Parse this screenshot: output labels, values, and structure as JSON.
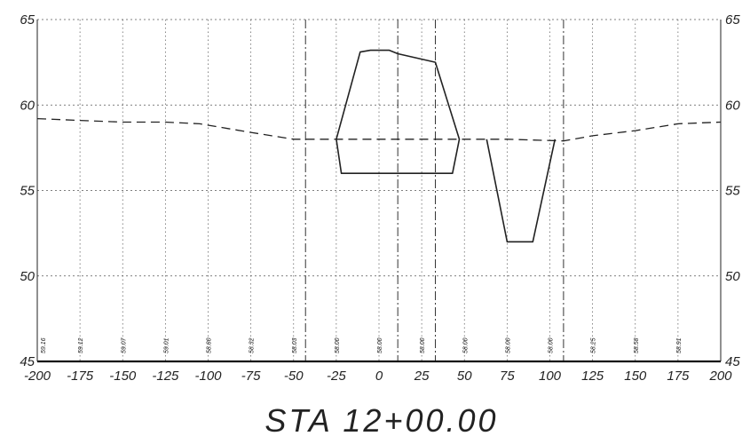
{
  "chart_data": {
    "type": "line",
    "title": "STA 12+00.00",
    "xlim": [
      -200,
      200
    ],
    "ylim": [
      45,
      65
    ],
    "x_ticks": [
      -200,
      -175,
      -150,
      -125,
      -100,
      -75,
      -50,
      -25,
      0,
      25,
      50,
      75,
      100,
      125,
      150,
      175,
      200
    ],
    "y_ticks": [
      45,
      50,
      55,
      60,
      65
    ],
    "grid": true,
    "vertical_lines": [
      {
        "x": -43,
        "style": "dash-dot"
      },
      {
        "x": 108,
        "style": "dash-dot"
      },
      {
        "x": 11,
        "style": "dash-dot"
      },
      {
        "x": 33,
        "style": "dash-dot"
      }
    ],
    "series": [
      {
        "style": "dashed",
        "points": [
          [
            -200,
            59.2
          ],
          [
            -175,
            59.1
          ],
          [
            -150,
            59.0
          ],
          [
            -125,
            59.0
          ],
          [
            -105,
            58.9
          ],
          [
            -75,
            58.4
          ],
          [
            -50,
            58.0
          ],
          [
            -25,
            58.0
          ],
          [
            0,
            58.0
          ],
          [
            25,
            58.0
          ],
          [
            50,
            58.0
          ],
          [
            75,
            58.0
          ],
          [
            108,
            57.9
          ],
          [
            125,
            58.2
          ],
          [
            150,
            58.5
          ],
          [
            175,
            58.9
          ],
          [
            200,
            59.0
          ]
        ]
      },
      {
        "style": "solid",
        "points": [
          [
            -25,
            58.0
          ],
          [
            -11,
            63.1
          ],
          [
            -5,
            63.2
          ],
          [
            6,
            63.2
          ],
          [
            11,
            63.0
          ],
          [
            33,
            62.5
          ],
          [
            47,
            58.0
          ],
          [
            43,
            56.0
          ],
          [
            -22,
            56.0
          ],
          [
            -25,
            58.0
          ]
        ]
      },
      {
        "style": "solid",
        "points": [
          [
            63,
            58.0
          ],
          [
            75,
            52.0
          ],
          [
            90,
            52.0
          ],
          [
            103,
            58.0
          ]
        ]
      }
    ],
    "elevation_labels": [
      "59.16",
      "59.12",
      "59.07",
      "59.01",
      "58.80",
      "58.32",
      "58.03",
      "58.00",
      "58.00",
      "58.00",
      "58.00",
      "58.00",
      "58.00",
      "58.25",
      "58.58",
      "58.91"
    ],
    "elevation_label_x": [
      -197,
      -175,
      -150,
      -125,
      -100,
      -75,
      -50,
      -25,
      0,
      25,
      50,
      75,
      100,
      125,
      150,
      175
    ]
  }
}
